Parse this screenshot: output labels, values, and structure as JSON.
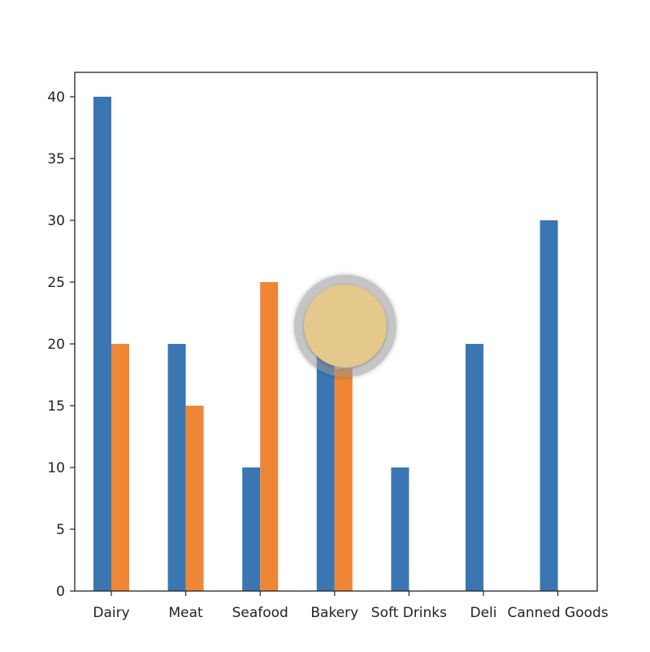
{
  "chart_data": {
    "type": "bar",
    "categories": [
      "Dairy",
      "Meat",
      "Seafood",
      "Bakery",
      "Soft Drinks",
      "Deli",
      "Canned Goods"
    ],
    "series": [
      {
        "values": [
          40,
          20,
          10,
          20,
          10,
          20,
          30
        ],
        "color": "#3a76b2"
      },
      {
        "values": [
          20,
          15,
          25,
          18,
          null,
          null,
          null
        ],
        "color": "#ef8636"
      }
    ],
    "yticks": [
      0,
      5,
      10,
      15,
      20,
      25,
      30,
      35,
      40
    ],
    "ylim": [
      0,
      42
    ],
    "title": "",
    "xlabel": "",
    "ylabel": "",
    "grid": false,
    "legend": "none"
  },
  "overlay": {
    "name": "touch-indicator",
    "color": "#e4c88c"
  }
}
